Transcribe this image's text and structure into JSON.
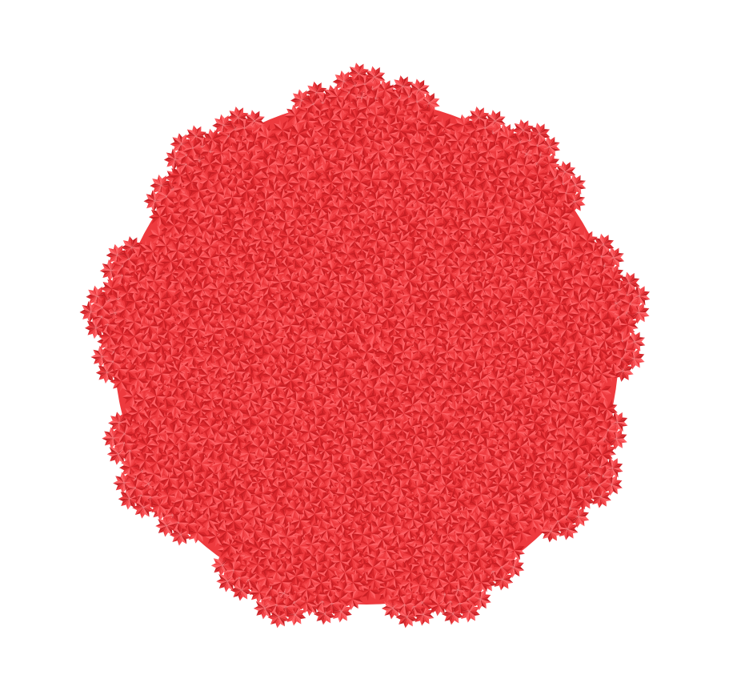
{
  "image": {
    "subject": "red-rosette-fractal-tiling",
    "symmetry_fold": 9,
    "recursion_depth": 3,
    "background_color": "#ffffff",
    "colors": {
      "base": "#ee3a3e",
      "light": "#ff6064",
      "mid": "#f5484c",
      "dark": "#d9262b",
      "deep": "#c81e23"
    }
  }
}
